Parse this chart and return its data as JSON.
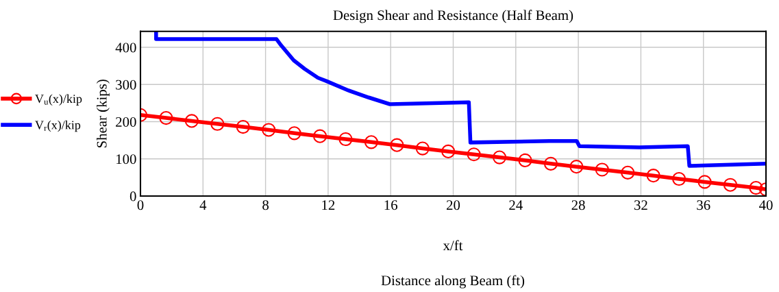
{
  "chart_data": {
    "type": "line",
    "title": "Design Shear and Resistance (Half Beam)",
    "xlabel": "Distance along Beam (ft)",
    "ylabel": "Shear (kips)",
    "annotations": [
      "x/ft"
    ],
    "xlim": [
      0,
      40
    ],
    "ylim": [
      0,
      443
    ],
    "xticks": [
      0,
      4,
      8,
      12,
      16,
      20,
      24,
      28,
      32,
      36,
      40
    ],
    "yticks": [
      0,
      100,
      200,
      300,
      400
    ],
    "grid": true,
    "legend": "left",
    "series": [
      {
        "name": "V$_{u}$(x)/kip",
        "color": "#ff0000",
        "marker": "circle",
        "x": [
          0,
          1.64,
          3.28,
          4.92,
          6.56,
          8.2,
          9.84,
          11.48,
          13.12,
          14.76,
          16.4,
          18.04,
          19.68,
          21.32,
          22.96,
          24.6,
          26.24,
          27.88,
          29.52,
          31.16,
          32.8,
          34.44,
          36.08,
          37.72,
          39.36,
          40
        ],
        "values": [
          218,
          210,
          202,
          194,
          186,
          178,
          169,
          161,
          153,
          145,
          137,
          128,
          120,
          112,
          104,
          96,
          87,
          79,
          71,
          63,
          55,
          46,
          38,
          30,
          22,
          18
        ]
      },
      {
        "name": "V$_{r}$(x)/kip",
        "color": "#0000ff",
        "marker": "none",
        "x": [
          1.0,
          1.0,
          8.7,
          9.0,
          9.8,
          10.5,
          11.35,
          11.9,
          13.3,
          14.6,
          15.95,
          21.0,
          21.1,
          26.15,
          27.9,
          28.07,
          31.9,
          35.0,
          35.1,
          40
        ],
        "values": [
          443,
          422,
          422,
          405,
          365,
          342,
          318,
          309,
          284,
          265,
          247,
          252,
          144,
          148,
          148,
          134,
          131,
          134,
          81,
          87
        ]
      }
    ]
  }
}
